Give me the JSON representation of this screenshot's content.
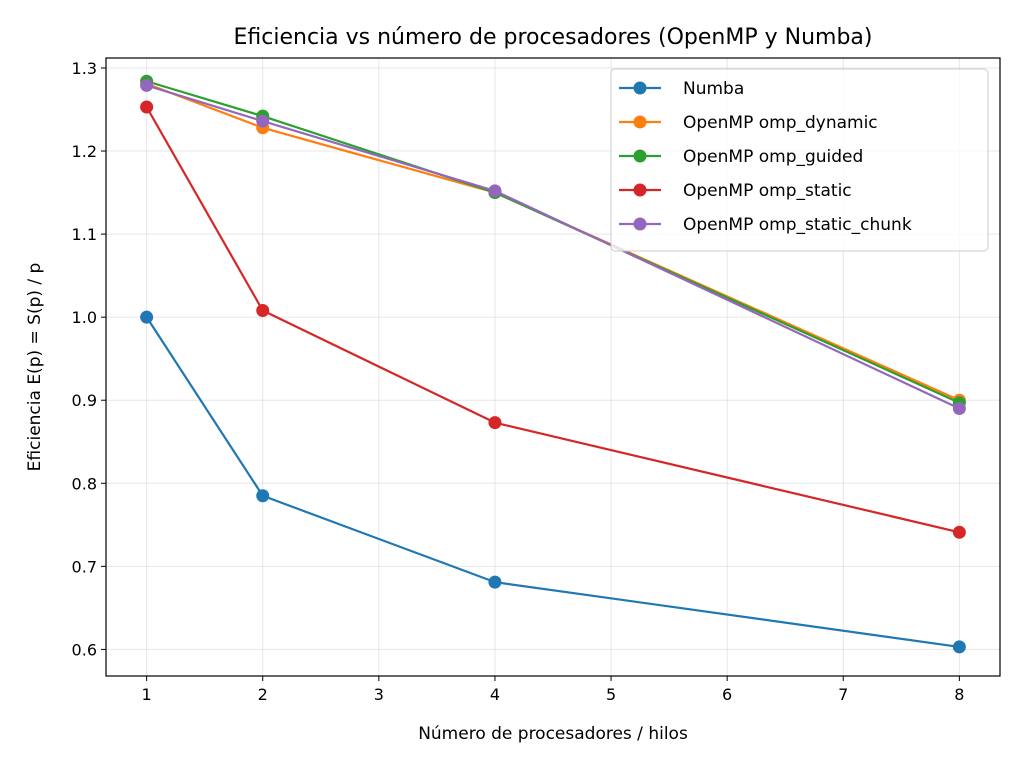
{
  "chart_data": {
    "type": "line",
    "title": "Eficiencia vs número de procesadores (OpenMP y Numba)",
    "xlabel": "Número de procesadores / hilos",
    "ylabel": "Eficiencia E(p) = S(p) / p",
    "xlim": [
      0.65,
      8.35
    ],
    "ylim": [
      0.568,
      1.312
    ],
    "xticks": [
      1,
      2,
      3,
      4,
      5,
      6,
      7,
      8
    ],
    "xtick_labels": [
      "1",
      "2",
      "3",
      "4",
      "5",
      "6",
      "7",
      "8"
    ],
    "yticks": [
      0.6,
      0.7,
      0.8,
      0.9,
      1.0,
      1.1,
      1.2,
      1.3
    ],
    "ytick_labels": [
      "0.6",
      "0.7",
      "0.8",
      "0.9",
      "1.0",
      "1.1",
      "1.2",
      "1.3"
    ],
    "grid": true,
    "legend_position": "top-right",
    "x": [
      1,
      2,
      4,
      8
    ],
    "series": [
      {
        "name": "Numba",
        "color": "#1f77b4",
        "values": [
          1.0,
          0.785,
          0.681,
          0.603
        ]
      },
      {
        "name": "OpenMP omp_dynamic",
        "color": "#ff7f0e",
        "values": [
          1.281,
          1.228,
          1.15,
          0.9
        ]
      },
      {
        "name": "OpenMP omp_guided",
        "color": "#2ca02c",
        "values": [
          1.284,
          1.242,
          1.15,
          0.897
        ]
      },
      {
        "name": "OpenMP omp_static",
        "color": "#d62728",
        "values": [
          1.253,
          1.008,
          0.873,
          0.741
        ]
      },
      {
        "name": "OpenMP omp_static_chunk",
        "color": "#9467bd",
        "values": [
          1.279,
          1.236,
          1.152,
          0.89
        ]
      }
    ]
  }
}
